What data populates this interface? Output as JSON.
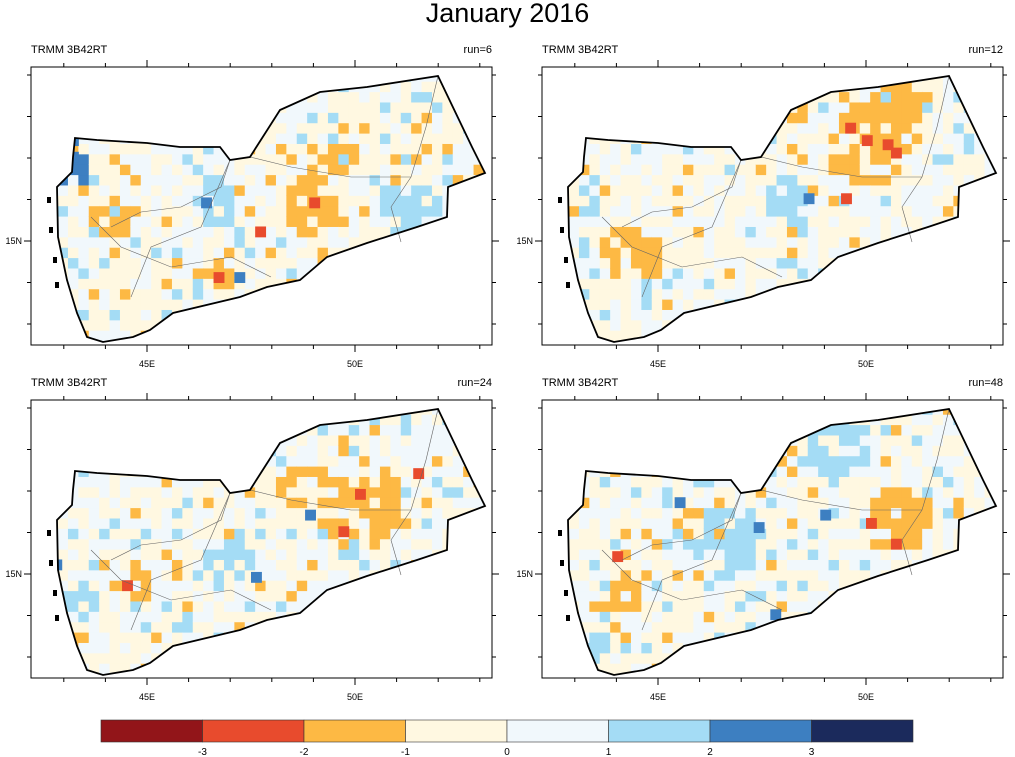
{
  "title": "January 2016",
  "colors": [
    "#921519",
    "#e84b2d",
    "#fdb944",
    "#fff8e1",
    "#f1f8fc",
    "#a4dcf5",
    "#3d7fc1",
    "#1b2a5c"
  ],
  "chart_data": {
    "type": "heatmap",
    "title": "January 2016",
    "lon_range": [
      42.2,
      53.3
    ],
    "lat_range": [
      12.5,
      19.2
    ],
    "x_tick_labels": [
      {
        "lon": 45,
        "label": "45E"
      },
      {
        "lon": 50,
        "label": "50E"
      }
    ],
    "y_tick_labels": [
      {
        "lat": 15,
        "label": "15N"
      }
    ],
    "colorbar": {
      "levels": [
        "-3",
        "-2",
        "-1",
        "0",
        "1",
        "2",
        "3"
      ]
    },
    "panels": [
      {
        "left_label": "TRMM 3B42RT",
        "right_label": "run=6",
        "seed": 11,
        "patches": [
          {
            "lon": 43.1,
            "lat": 16.6,
            "r": 0.5,
            "cat": 6
          },
          {
            "lon": 44.0,
            "lat": 15.4,
            "r": 0.5,
            "cat": 2
          },
          {
            "lon": 48.9,
            "lat": 15.7,
            "r": 0.7,
            "cat": 2
          },
          {
            "lon": 49.5,
            "lat": 17.0,
            "r": 0.5,
            "cat": 2
          },
          {
            "lon": 46.5,
            "lat": 15.8,
            "r": 0.6,
            "cat": 5
          },
          {
            "lon": 51.3,
            "lat": 15.5,
            "r": 0.8,
            "cat": 5
          },
          {
            "lon": 46.7,
            "lat": 14.2,
            "r": 0.4,
            "cat": 2
          }
        ],
        "cells": [
          {
            "lon": 43.1,
            "lat": 16.9,
            "cat": 6
          },
          {
            "lon": 43.1,
            "lat": 17.3,
            "cat": 6
          },
          {
            "lon": 42.7,
            "lat": 14.1,
            "cat": 1
          },
          {
            "lon": 47.6,
            "lat": 15.1,
            "cat": 1
          },
          {
            "lon": 48.9,
            "lat": 15.8,
            "cat": 1
          },
          {
            "lon": 46.6,
            "lat": 14.0,
            "cat": 1
          },
          {
            "lon": 46.3,
            "lat": 15.8,
            "cat": 6
          },
          {
            "lon": 47.1,
            "lat": 14.0,
            "cat": 6
          }
        ]
      },
      {
        "left_label": "TRMM 3B42RT",
        "right_label": "run=12",
        "seed": 23,
        "patches": [
          {
            "lon": 49.9,
            "lat": 17.2,
            "r": 1.0,
            "cat": 2
          },
          {
            "lon": 50.5,
            "lat": 18.0,
            "r": 0.7,
            "cat": 2
          },
          {
            "lon": 44.2,
            "lat": 14.6,
            "r": 0.7,
            "cat": 2
          },
          {
            "lon": 47.9,
            "lat": 16.0,
            "r": 0.5,
            "cat": 5
          },
          {
            "lon": 43.3,
            "lat": 15.8,
            "r": 0.4,
            "cat": 5
          }
        ],
        "cells": [
          {
            "lon": 49.9,
            "lat": 17.3,
            "cat": 1
          },
          {
            "lon": 50.4,
            "lat": 17.2,
            "cat": 1
          },
          {
            "lon": 50.6,
            "lat": 17.0,
            "cat": 1
          },
          {
            "lon": 49.4,
            "lat": 15.9,
            "cat": 1
          },
          {
            "lon": 49.5,
            "lat": 17.6,
            "cat": 1
          },
          {
            "lon": 48.5,
            "lat": 15.9,
            "cat": 6
          }
        ]
      },
      {
        "left_label": "TRMM 3B42RT",
        "right_label": "run=24",
        "seed": 37,
        "patches": [
          {
            "lon": 50.0,
            "lat": 16.5,
            "r": 1.0,
            "cat": 2
          },
          {
            "lon": 48.5,
            "lat": 17.0,
            "r": 0.5,
            "cat": 2
          },
          {
            "lon": 44.5,
            "lat": 14.8,
            "r": 0.6,
            "cat": 2
          },
          {
            "lon": 46.8,
            "lat": 15.2,
            "r": 0.6,
            "cat": 5
          },
          {
            "lon": 43.3,
            "lat": 14.2,
            "r": 0.5,
            "cat": 5
          }
        ],
        "cells": [
          {
            "lon": 50.0,
            "lat": 16.8,
            "cat": 1
          },
          {
            "lon": 49.6,
            "lat": 15.9,
            "cat": 1
          },
          {
            "lon": 51.4,
            "lat": 17.3,
            "cat": 1
          },
          {
            "lon": 44.4,
            "lat": 14.6,
            "cat": 1
          },
          {
            "lon": 48.8,
            "lat": 16.3,
            "cat": 6
          },
          {
            "lon": 47.5,
            "lat": 14.8,
            "cat": 6
          },
          {
            "lon": 42.7,
            "lat": 15.1,
            "cat": 6
          }
        ]
      },
      {
        "left_label": "TRMM 3B42RT",
        "right_label": "run=48",
        "seed": 53,
        "patches": [
          {
            "lon": 46.5,
            "lat": 15.7,
            "r": 0.9,
            "cat": 5
          },
          {
            "lon": 49.2,
            "lat": 18.0,
            "r": 0.8,
            "cat": 5
          },
          {
            "lon": 50.6,
            "lat": 16.2,
            "r": 0.8,
            "cat": 2
          },
          {
            "lon": 44.0,
            "lat": 14.4,
            "r": 0.5,
            "cat": 2
          },
          {
            "lon": 43.3,
            "lat": 13.2,
            "r": 0.4,
            "cat": 5
          }
        ],
        "cells": [
          {
            "lon": 43.9,
            "lat": 15.3,
            "cat": 1
          },
          {
            "lon": 50.6,
            "lat": 15.6,
            "cat": 1
          },
          {
            "lon": 50.0,
            "lat": 16.1,
            "cat": 1
          },
          {
            "lon": 45.4,
            "lat": 16.6,
            "cat": 6
          },
          {
            "lon": 47.3,
            "lat": 16.0,
            "cat": 6
          },
          {
            "lon": 48.9,
            "lat": 16.3,
            "cat": 6
          },
          {
            "lon": 43.1,
            "lat": 12.9,
            "cat": 6
          },
          {
            "lon": 47.7,
            "lat": 13.9,
            "cat": 6
          }
        ]
      }
    ]
  }
}
